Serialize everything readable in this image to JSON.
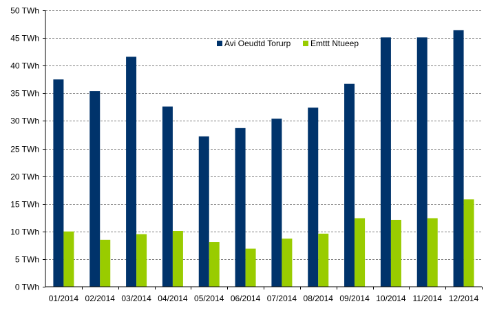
{
  "chart_data": {
    "type": "bar",
    "categories": [
      "01/2014",
      "02/2014",
      "03/2014",
      "04/2014",
      "05/2014",
      "06/2014",
      "07/2014",
      "08/2014",
      "09/2014",
      "10/2014",
      "11/2014",
      "12/2014"
    ],
    "series": [
      {
        "name": "Avi Oeudtd Torurp",
        "color": "#00336b",
        "values": [
          37.5,
          35.4,
          41.6,
          32.6,
          27.2,
          28.7,
          30.4,
          32.4,
          36.7,
          45.1,
          45.1,
          46.4
        ]
      },
      {
        "name": "Emttt Ntueep",
        "color": "#99cc00",
        "values": [
          10.0,
          8.5,
          9.5,
          10.1,
          8.1,
          6.9,
          8.7,
          9.6,
          12.4,
          12.1,
          12.4,
          15.8
        ]
      }
    ],
    "yticks": [
      "0 TWh",
      "5 TWh",
      "10 TWh",
      "15 TWh",
      "20 TWh",
      "25 TWh",
      "30 TWh",
      "35 TWh",
      "40 TWh",
      "45 TWh",
      "50 TWh"
    ],
    "ylim": [
      0,
      50
    ],
    "ytick_step": 5,
    "unit": "TWh",
    "grid": true,
    "legend_position": "top-right",
    "title": "",
    "xlabel": "",
    "ylabel": ""
  }
}
